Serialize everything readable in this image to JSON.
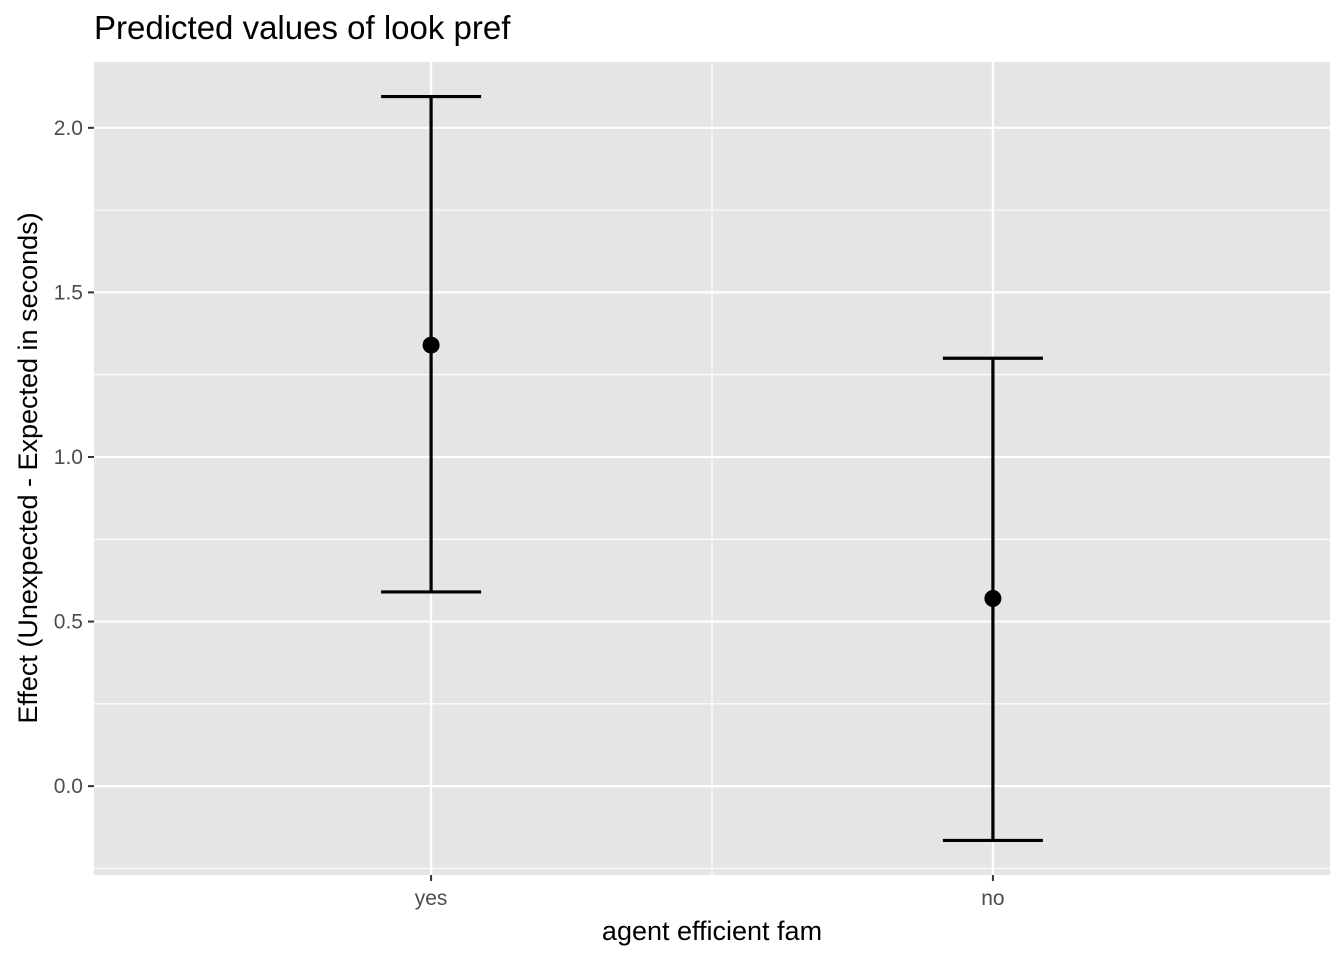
{
  "chart_data": {
    "type": "errorbar",
    "title": "Predicted values of look pref",
    "xlabel": "agent efficient fam",
    "ylabel": "Effect (Unexpected - Expected in seconds)",
    "categories": [
      "yes",
      "no"
    ],
    "values": [
      1.34,
      0.57
    ],
    "lower": [
      0.59,
      -0.165
    ],
    "upper": [
      2.095,
      1.3
    ],
    "ylim": [
      -0.27,
      2.2
    ],
    "yticks": [
      0.0,
      0.5,
      1.0,
      1.5,
      2.0
    ],
    "ytick_labels": [
      "0.0",
      "0.5",
      "1.0",
      "1.5",
      "2.0"
    ],
    "grid": true,
    "colors": {
      "panel_background": "#e5e5e5",
      "grid": "#ffffff",
      "mark": "#000000",
      "tick_text": "#4d4d4d"
    }
  }
}
